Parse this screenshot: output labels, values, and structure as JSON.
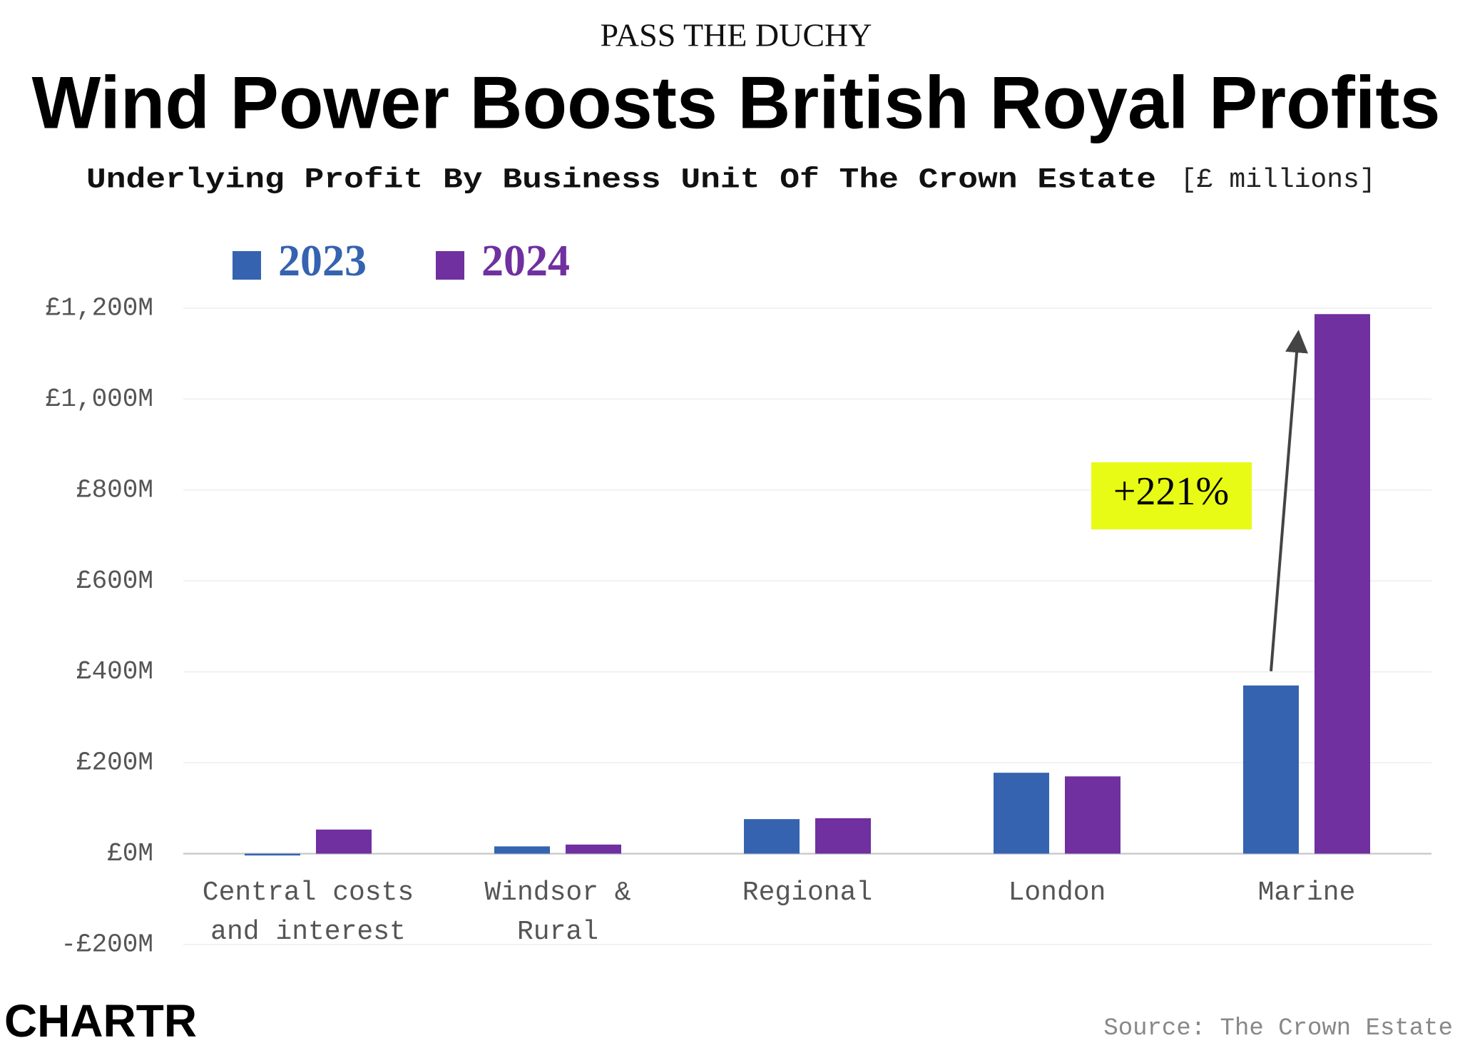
{
  "kicker": "PASS THE DUCHY",
  "chart_data": {
    "type": "bar",
    "title": "Wind Power Boosts British Royal Profits",
    "subtitle": "Underlying Profit By Business Unit Of The Crown Estate",
    "unit_note": "[£ millions]",
    "categories": [
      "Central costs and interest",
      "Windsor & Rural",
      "Regional",
      "London",
      "Marine"
    ],
    "series": [
      {
        "name": "2023",
        "color": "#3563b0",
        "values": [
          -4,
          16,
          76,
          178,
          370
        ]
      },
      {
        "name": "2024",
        "color": "#7030a0",
        "values": [
          53,
          20,
          78,
          170,
          1187
        ]
      }
    ],
    "ylim": [
      -200,
      1200
    ],
    "yticks": [
      {
        "value": -200,
        "label": "-£200M"
      },
      {
        "value": 0,
        "label": "£0M"
      },
      {
        "value": 200,
        "label": "£200M"
      },
      {
        "value": 400,
        "label": "£400M"
      },
      {
        "value": 600,
        "label": "£600M"
      },
      {
        "value": 800,
        "label": "£800M"
      },
      {
        "value": 1000,
        "label": "£1,000M"
      },
      {
        "value": 1200,
        "label": "£1,200M"
      }
    ],
    "grid": true,
    "annotation": "+221%",
    "source": "Source: The Crown Estate"
  },
  "logo": "CHARTR"
}
